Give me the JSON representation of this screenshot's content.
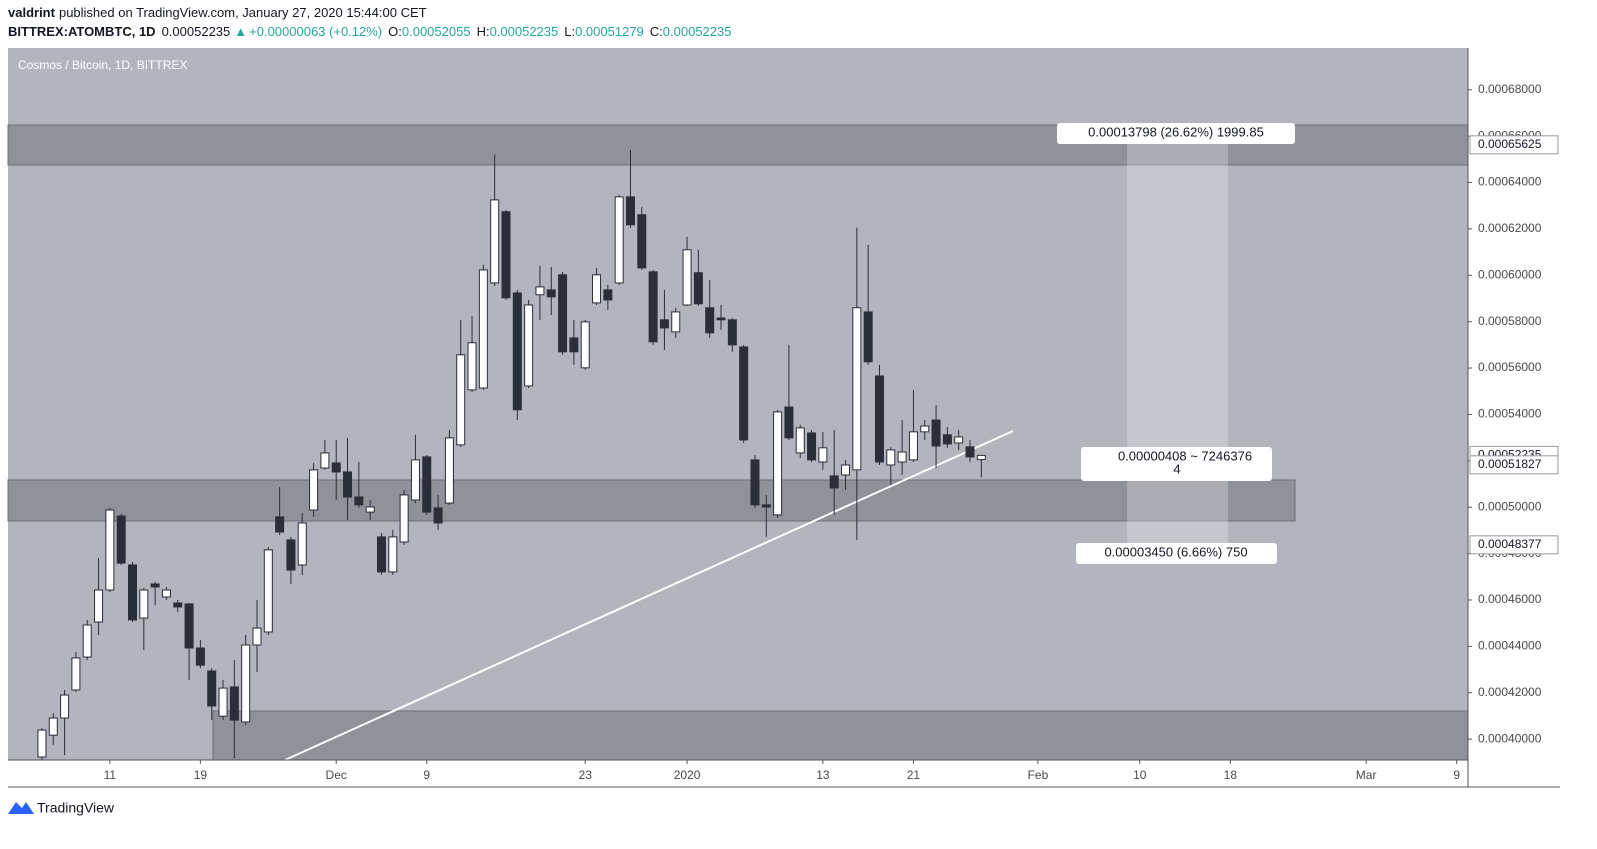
{
  "header": {
    "author": "valdrint",
    "published": "published on TradingView.com, January 27, 2020 15:44:00 CET",
    "symbol": "BITTREX:ATOMBTC, 1D",
    "change": "+0.00000063 (+0.12%)",
    "ohlc_labels": [
      "O:",
      "H:",
      "L:",
      "C:"
    ]
  },
  "footer": {
    "brand": "TradingView"
  },
  "chart_data": {
    "type": "candlestick",
    "title": "Cosmos / Bitcoin, 1D, BITTREX",
    "x": [
      "2019-11-05",
      "2019-11-06",
      "2019-11-07",
      "2019-11-08",
      "2019-11-09",
      "2019-11-10",
      "2019-11-11",
      "2019-11-12",
      "2019-11-13",
      "2019-11-14",
      "2019-11-15",
      "2019-11-16",
      "2019-11-17",
      "2019-11-18",
      "2019-11-19",
      "2019-11-20",
      "2019-11-21",
      "2019-11-22",
      "2019-11-23",
      "2019-11-24",
      "2019-11-25",
      "2019-11-26",
      "2019-11-27",
      "2019-11-28",
      "2019-11-29",
      "2019-11-30",
      "2019-12-01",
      "2019-12-02",
      "2019-12-03",
      "2019-12-04",
      "2019-12-05",
      "2019-12-06",
      "2019-12-07",
      "2019-12-08",
      "2019-12-09",
      "2019-12-10",
      "2019-12-11",
      "2019-12-12",
      "2019-12-13",
      "2019-12-14",
      "2019-12-15",
      "2019-12-16",
      "2019-12-17",
      "2019-12-18",
      "2019-12-19",
      "2019-12-20",
      "2019-12-21",
      "2019-12-22",
      "2019-12-23",
      "2019-12-24",
      "2019-12-25",
      "2019-12-26",
      "2019-12-27",
      "2019-12-28",
      "2019-12-29",
      "2019-12-30",
      "2019-12-31",
      "2020-01-01",
      "2020-01-02",
      "2020-01-03",
      "2020-01-04",
      "2020-01-05",
      "2020-01-06",
      "2020-01-07",
      "2020-01-08",
      "2020-01-09",
      "2020-01-10",
      "2020-01-11",
      "2020-01-12",
      "2020-01-13",
      "2020-01-14",
      "2020-01-15",
      "2020-01-16",
      "2020-01-17",
      "2020-01-18",
      "2020-01-19",
      "2020-01-20",
      "2020-01-21",
      "2020-01-22",
      "2020-01-23",
      "2020-01-24",
      "2020-01-25",
      "2020-01-26",
      "2020-01-27"
    ],
    "open": [
      0.0003923,
      0.0004017,
      0.0004091,
      0.0004212,
      0.0004354,
      0.0004505,
      0.0004643,
      0.0004962,
      0.0004751,
      0.0004522,
      0.0004669,
      0.0004613,
      0.0004587,
      0.0004583,
      0.0004393,
      0.0004294,
      0.0004099,
      0.0004225,
      0.0004074,
      0.0004406,
      0.0004462,
      0.0004958,
      0.0004859,
      0.0004751,
      0.0004988,
      0.0005169,
      0.0005191,
      0.0005152,
      0.0005044,
      0.0004979,
      0.0004872,
      0.0004721,
      0.000485,
      0.0005031,
      0.0005217,
      0.0004997,
      0.0005018,
      0.0005269,
      0.0005506,
      0.0005514,
      0.0005967,
      0.0006274,
      0.0005924,
      0.0005523,
      0.0005916,
      0.0005937,
      0.0006002,
      0.000573,
      0.0005601,
      0.0005881,
      0.0005937,
      0.0005967,
      0.0006338,
      0.0006261,
      0.0006015,
      0.0005808,
      0.0005756,
      0.0005872,
      0.0006011,
      0.000586,
      0.0005816,
      0.0005808,
      0.0005691,
      0.0005204,
      0.000501,
      0.0004967,
      0.0005432,
      0.0005234,
      0.000532,
      0.0005195,
      0.0005135,
      0.0005139,
      0.0005161,
      0.0005842,
      0.0005566,
      0.0005182,
      0.0005195,
      0.0005204,
      0.0005325,
      0.0005376,
      0.0005312,
      0.0005277,
      0.000526,
      0.00052055
    ],
    "high": [
      0.0004048,
      0.0004112,
      0.0004212,
      0.0004376,
      0.0004514,
      0.0004781,
      0.0004997,
      0.0004971,
      0.0004764,
      0.0004652,
      0.0004678,
      0.0004656,
      0.00046,
      0.0004587,
      0.0004427,
      0.0004306,
      0.0004255,
      0.0004341,
      0.0004449,
      0.00046,
      0.0004828,
      0.0005087,
      0.0004872,
      0.0004975,
      0.0005191,
      0.000529,
      0.000529,
      0.0005299,
      0.0005195,
      0.0005031,
      0.0004889,
      0.0004902,
      0.0005074,
      0.0005312,
      0.0005225,
      0.0005053,
      0.0005333,
      0.0005808,
      0.0005825,
      0.0006045,
      0.000652,
      0.0006282,
      0.0005937,
      0.0005894,
      0.0006041,
      0.0006036,
      0.0006015,
      0.0005808,
      0.0005808,
      0.0006032,
      0.0005959,
      0.0006347,
      0.0006541,
      0.0006295,
      0.0006023,
      0.0005937,
      0.000586,
      0.0006166,
      0.000611,
      0.000598,
      0.0005872,
      0.0005816,
      0.00057,
      0.0005225,
      0.0005053,
      0.000542,
      0.00057,
      0.0005355,
      0.0005333,
      0.0005325,
      0.0005333,
      0.0005204,
      0.0006205,
      0.0006131,
      0.0005614,
      0.000526,
      0.0005376,
      0.0005506,
      0.0005376,
      0.0005441,
      0.0005346,
      0.0005333,
      0.000529,
      0.00052235
    ],
    "low": [
      0.000391,
      0.0003974,
      0.0003931,
      0.0004203,
      0.0004341,
      0.0004449,
      0.0004634,
      0.0004751,
      0.0004505,
      0.0004384,
      0.0004578,
      0.00046,
      0.0004548,
      0.0004255,
      0.0004306,
      0.0004082,
      0.0004082,
      0.0003918,
      0.0004061,
      0.0004289,
      0.0004449,
      0.000488,
      0.0004669,
      0.0004708,
      0.0004958,
      0.0005161,
      0.0005031,
      0.0004945,
      0.0004997,
      0.0004945,
      0.0004708,
      0.0004708,
      0.0004837,
      0.0005018,
      0.0004967,
      0.0004902,
      0.000501,
      0.000526,
      0.0005497,
      0.0005506,
      0.0005954,
      0.0005894,
      0.0005376,
      0.0005514,
      0.0005808,
      0.0005829,
      0.0005657,
      0.0005614,
      0.0005592,
      0.0005872,
      0.0005851,
      0.0005959,
      0.0006205,
      0.0006023,
      0.00057,
      0.0005678,
      0.000573,
      0.0005868,
      0.0005868,
      0.000573,
      0.0005765,
      0.000567,
      0.0005277,
      0.0004997,
      0.0004872,
      0.0004954,
      0.000529,
      0.0005212,
      0.0005195,
      0.0005161,
      0.0004967,
      0.0005074,
      0.0004859,
      0.0005614,
      0.0005182,
      0.0005096,
      0.0005139,
      0.0005195,
      0.000529,
      0.0005169,
      0.0005256,
      0.0005247,
      0.0005195,
      0.00051279
    ],
    "close": [
      0.0004039,
      0.0004091,
      0.000419,
      0.000435,
      0.0004492,
      0.0004643,
      0.0004988,
      0.0004759,
      0.0004514,
      0.0004643,
      0.0004656,
      0.0004643,
      0.000457,
      0.0004393,
      0.0004319,
      0.0004143,
      0.000422,
      0.0004082,
      0.0004406,
      0.0004479,
      0.0004816,
      0.0004893,
      0.0004729,
      0.0004932,
      0.0005161,
      0.0005234,
      0.0005152,
      0.0005044,
      0.000501,
      0.0005001,
      0.0004721,
      0.0004872,
      0.0005053,
      0.0005204,
      0.0004979,
      0.0004932,
      0.0005299,
      0.0005657,
      0.0005709,
      0.0006023,
      0.0006325,
      0.0005903,
      0.000542,
      0.0005872,
      0.000595,
      0.0005907,
      0.000567,
      0.000567,
      0.0005799,
      0.0006002,
      0.0005894,
      0.0006338,
      0.0006218,
      0.0006032,
      0.0005713,
      0.0005773,
      0.0005842,
      0.000611,
      0.0005877,
      0.0005752,
      0.0005808,
      0.00057,
      0.000529,
      0.000501,
      0.0005001,
      0.0005411,
      0.0005299,
      0.0005342,
      0.0005204,
      0.0005256,
      0.0005083,
      0.0005182,
      0.000586,
      0.0005627,
      0.0005195,
      0.0005247,
      0.0005238,
      0.0005325,
      0.000535,
      0.0005264,
      0.0005273,
      0.0005303,
      0.0005217,
      0.00052235
    ],
    "up_color": "#ffffff",
    "down_color": "#2a2e39",
    "xlim": [
      "2019-11-02",
      "2020-03-10"
    ],
    "xticks": [
      {
        "value": "2019-11-11",
        "label": "11"
      },
      {
        "value": "2019-11-19",
        "label": "19"
      },
      {
        "value": "2019-12-01",
        "label": "Dec"
      },
      {
        "value": "2019-12-09",
        "label": "9"
      },
      {
        "value": "2019-12-23",
        "label": "23"
      },
      {
        "value": "2020-01-01",
        "label": "2020"
      },
      {
        "value": "2020-01-13",
        "label": "13"
      },
      {
        "value": "2020-01-21",
        "label": "21"
      },
      {
        "value": "2020-02-01",
        "label": "Feb"
      },
      {
        "value": "2020-02-10",
        "label": "10"
      },
      {
        "value": "2020-02-18",
        "label": "18"
      },
      {
        "value": "2020-03-01",
        "label": "Mar"
      },
      {
        "value": "2020-03-09",
        "label": "9"
      }
    ],
    "ylim": [
      0.000391,
      0.000698
    ],
    "yticks": [
      {
        "value": 0.0004,
        "label": "0.00040000"
      },
      {
        "value": 0.00042,
        "label": "0.00042000"
      },
      {
        "value": 0.00044,
        "label": "0.00044000"
      },
      {
        "value": 0.00046,
        "label": "0.00046000"
      },
      {
        "value": 0.00048,
        "label": "0.00048000"
      },
      {
        "value": 0.0005,
        "label": "0.00050000"
      },
      {
        "value": 0.00052,
        "label": "0.00052000"
      },
      {
        "value": 0.00054,
        "label": "0.00054000"
      },
      {
        "value": 0.00056,
        "label": "0.00056000"
      },
      {
        "value": 0.00058,
        "label": "0.00058000"
      },
      {
        "value": 0.0006,
        "label": "0.00060000"
      },
      {
        "value": 0.00062,
        "label": "0.00062000"
      },
      {
        "value": 0.00064,
        "label": "0.00064000"
      },
      {
        "value": 0.00066,
        "label": "0.00066000"
      },
      {
        "value": 0.00068,
        "label": "0.00068000"
      }
    ],
    "price_labels": [
      0.00065625,
      0.00052235,
      0.00051827,
      0.00048377
    ],
    "grid": false,
    "annotations": [
      "0.00013798 (26.62%) 1999.85",
      "0.00000408 ~ 7246376",
      "4",
      "0.00003450 (6.66%) 750"
    ]
  }
}
